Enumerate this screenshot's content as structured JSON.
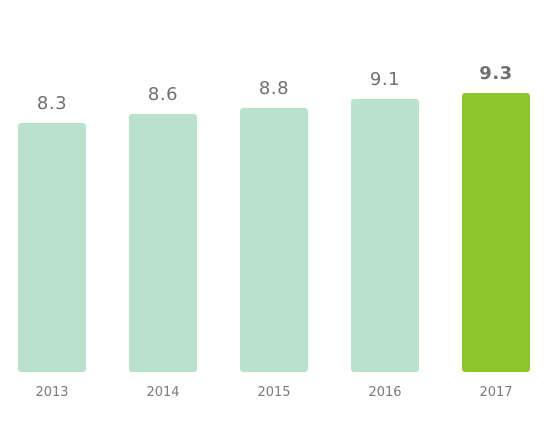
{
  "chart_data": {
    "type": "bar",
    "categories": [
      "2013",
      "2014",
      "2015",
      "2016",
      "2017"
    ],
    "values": [
      8.3,
      8.6,
      8.8,
      9.1,
      9.3
    ],
    "value_labels": [
      "8.3",
      "8.6",
      "8.8",
      "9.1",
      "9.3"
    ],
    "title": "",
    "xlabel": "",
    "ylabel": "",
    "ylim": [
      0,
      9.3
    ],
    "grid": false,
    "legend": "none",
    "highlight_index": 4,
    "colors": {
      "bar": "#bae1cc",
      "highlight": "#8dc72b",
      "value_text": "#707070",
      "tick_text": "#7a7a7a"
    }
  }
}
